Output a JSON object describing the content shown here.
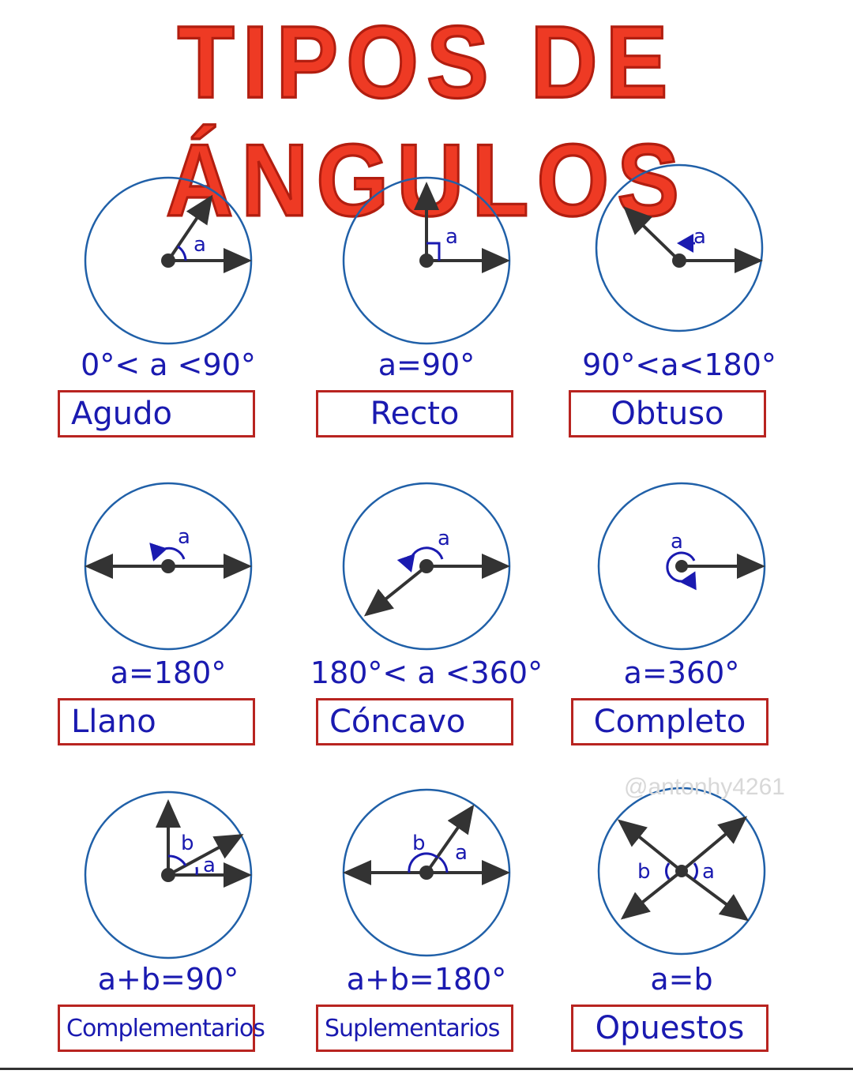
{
  "title": "TIPOS DE ÁNGULOS",
  "colors": {
    "title": "#ee3a24",
    "circle": "#2060a8",
    "ink": "#1a1ab0",
    "box_border": "#b82420",
    "arrow": "#333333"
  },
  "angles": [
    {
      "id": "agudo",
      "formula": "0°< a <90°",
      "name": "Agudo",
      "labels": [
        "a"
      ]
    },
    {
      "id": "recto",
      "formula": "a=90°",
      "name": "Recto",
      "labels": [
        "a"
      ]
    },
    {
      "id": "obtuso",
      "formula": "90°<a<180°",
      "name": "Obtuso",
      "labels": [
        "a"
      ]
    },
    {
      "id": "llano",
      "formula": "a=180°",
      "name": "Llano",
      "labels": [
        "a"
      ]
    },
    {
      "id": "concavo",
      "formula": "180°< a <360°",
      "name": "Cóncavo",
      "labels": [
        "a"
      ]
    },
    {
      "id": "completo",
      "formula": "a=360°",
      "name": "Completo",
      "labels": [
        "a"
      ]
    },
    {
      "id": "complementarios",
      "formula": "a+b=90°",
      "name": "Complementarios",
      "labels": [
        "a",
        "b"
      ]
    },
    {
      "id": "suplementarios",
      "formula": "a+b=180°",
      "name": "Suplementarios",
      "labels": [
        "a",
        "b"
      ]
    },
    {
      "id": "opuestos",
      "formula": "a=b",
      "name": "Opuestos",
      "labels": [
        "a",
        "b"
      ]
    }
  ],
  "watermark": "@antonhy4261"
}
